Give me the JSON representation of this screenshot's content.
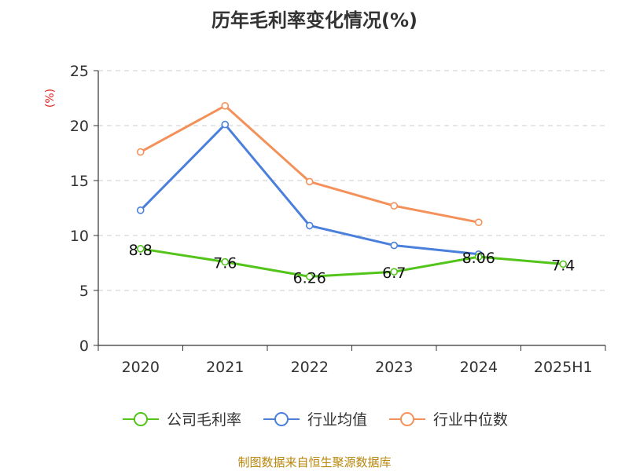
{
  "title": "历年毛利率变化情况(%)",
  "source": "制图数据来自恒生聚源数据库",
  "chart_data": {
    "type": "line",
    "title": "历年毛利率变化情况(%)",
    "ylabel": "(%)",
    "xlabel": "",
    "ylim": [
      0,
      25
    ],
    "yticks": [
      0,
      5,
      10,
      15,
      20,
      25
    ],
    "categories": [
      "2020",
      "2021",
      "2022",
      "2023",
      "2024",
      "2025H1"
    ],
    "grid": true,
    "legend_position": "bottom",
    "series": [
      {
        "name": "公司毛利率",
        "color": "#52c41a",
        "values": [
          8.8,
          7.6,
          6.26,
          6.7,
          8.06,
          7.4
        ],
        "labels": [
          "8.8",
          "7.6",
          "6.26",
          "6.7",
          "8.06",
          "7.4"
        ]
      },
      {
        "name": "行业均值",
        "color": "#4a7fdc",
        "values": [
          12.3,
          20.1,
          10.9,
          9.1,
          8.3,
          null
        ]
      },
      {
        "name": "行业中位数",
        "color": "#f4915a",
        "values": [
          17.6,
          21.8,
          14.9,
          12.7,
          11.2,
          null
        ]
      }
    ]
  }
}
